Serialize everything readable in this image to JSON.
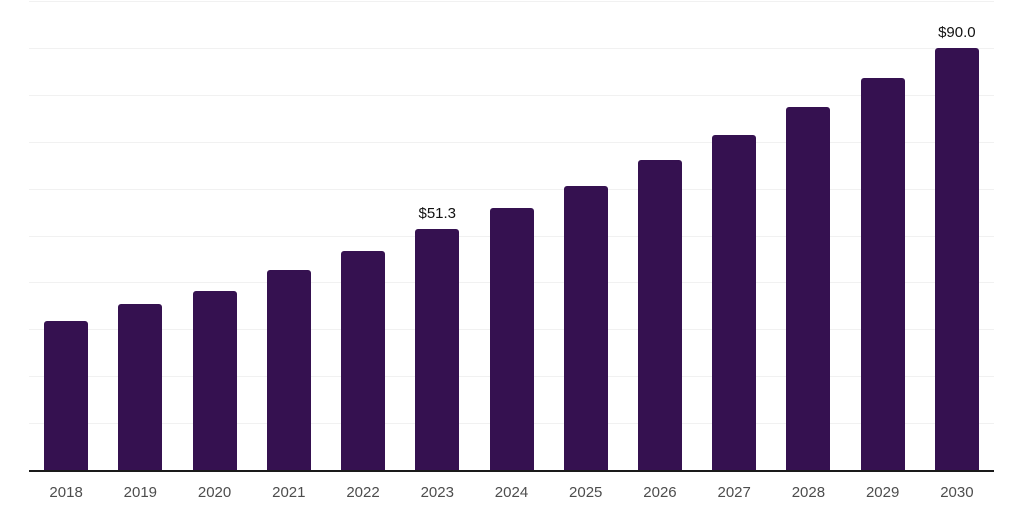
{
  "chart_data": {
    "type": "bar",
    "categories": [
      "2018",
      "2019",
      "2020",
      "2021",
      "2022",
      "2023",
      "2024",
      "2025",
      "2026",
      "2027",
      "2028",
      "2029",
      "2030"
    ],
    "values": [
      31.7,
      35.4,
      38.2,
      42.6,
      46.6,
      51.3,
      55.8,
      60.6,
      66.0,
      71.5,
      77.3,
      83.5,
      90.0
    ],
    "data_labels": [
      {
        "category": "2023",
        "text": "$51.3"
      },
      {
        "category": "2030",
        "text": "$90.0"
      }
    ],
    "value_prefix": "$",
    "ylim": [
      0,
      100
    ],
    "gridline_step": 10,
    "grid": true,
    "legend": false,
    "xlabel": "",
    "ylabel": "",
    "title": "",
    "colors": {
      "bar": "#351150",
      "gridline": "#f1f1f1",
      "axis_line": "#1a1a1a",
      "tick_label": "#4d4d4d",
      "data_label": "#111111",
      "background": "#ffffff"
    }
  }
}
